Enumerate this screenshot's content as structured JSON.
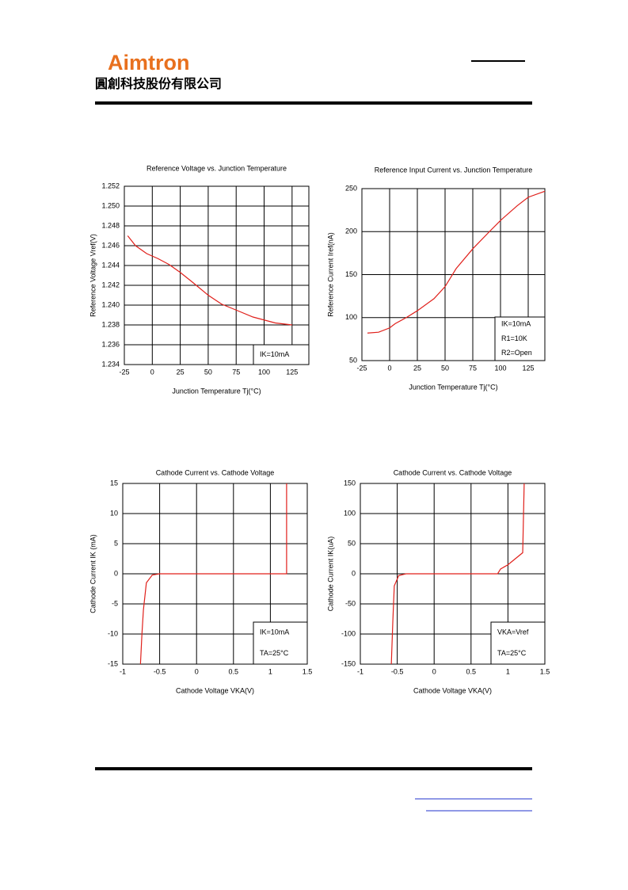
{
  "header": {
    "logo": "Aimtron",
    "company": "圓創科技股份有限公司"
  },
  "chart_data": [
    {
      "type": "line",
      "title": "Reference Voltage vs. Junction Temperature",
      "x_label": "Junction Temperature Tj(°C)",
      "y_label": "Reference Voltage Vref(V)",
      "x": [
        -22,
        -15,
        -5,
        5,
        15,
        25,
        35,
        50,
        62,
        75,
        90,
        110,
        125
      ],
      "values": [
        1.247,
        1.246,
        1.2452,
        1.2447,
        1.2441,
        1.2433,
        1.2424,
        1.241,
        1.2401,
        1.2395,
        1.2388,
        1.2382,
        1.238
      ],
      "color": "#e0201b",
      "xlim": [
        -25,
        140
      ],
      "xticks": [
        -25,
        0,
        25,
        50,
        75,
        100,
        125
      ],
      "ylim": [
        1.234,
        1.252
      ],
      "yticks": [
        {
          "value": 1.234,
          "label": "1.234"
        },
        {
          "value": 1.236,
          "label": "1.236"
        },
        {
          "value": 1.238,
          "label": "1.238"
        },
        {
          "value": 1.24,
          "label": "1.240"
        },
        {
          "value": 1.242,
          "label": "1.242"
        },
        {
          "value": 1.244,
          "label": "1.244"
        },
        {
          "value": 1.246,
          "label": "1.246"
        },
        {
          "value": 1.248,
          "label": "1.248"
        },
        {
          "value": 1.25,
          "label": "1.250"
        },
        {
          "value": 1.252,
          "label": "1.252"
        }
      ],
      "grid": true,
      "annotation": [
        "IK=10mA"
      ]
    },
    {
      "type": "line",
      "title": "Reference Input Current vs. Junction Temperature",
      "x_label": "Junction Temperature Tj(°C)",
      "y_label": "Reference Current Iref(nA)",
      "x": [
        -20,
        -10,
        0,
        5,
        15,
        25,
        40,
        50,
        60,
        75,
        90,
        100,
        115,
        125,
        140
      ],
      "values": [
        82,
        83,
        88,
        93,
        100,
        108,
        122,
        136,
        157,
        180,
        200,
        213,
        230,
        240,
        247
      ],
      "color": "#e0201b",
      "xlim": [
        -25,
        140
      ],
      "xticks": [
        -25,
        0,
        25,
        50,
        75,
        100,
        125
      ],
      "ylim": [
        50,
        250
      ],
      "yticks": [
        50,
        100,
        150,
        200,
        250
      ],
      "grid": true,
      "annotation": [
        "IK=10mA",
        "R1=10K",
        "R2=Open"
      ]
    },
    {
      "type": "line",
      "title": "Cathode Current vs. Cathode Voltage",
      "x_label": "Cathode Voltage VKA(V)",
      "y_label": "Cathode Current IK (mA)",
      "x": [
        -0.76,
        -0.74,
        -0.72,
        -0.68,
        -0.6,
        -0.5,
        1.22,
        1.22
      ],
      "values": [
        -15,
        -10,
        -6,
        -1.5,
        -0.2,
        0,
        0,
        15
      ],
      "color": "#e0201b",
      "xlim": [
        -1,
        1.5
      ],
      "xticks": [
        -1,
        -0.5,
        0,
        0.5,
        1,
        1.5
      ],
      "ylim": [
        -15,
        15
      ],
      "yticks": [
        -15,
        -10,
        -5,
        0,
        5,
        10,
        15
      ],
      "grid": true,
      "annotation": [
        "IK=10mA",
        "TA=25°C"
      ]
    },
    {
      "type": "line",
      "title": "Cathode Current vs. Cathode Voltage",
      "x_label": "Cathode Voltage VKA(V)",
      "y_label": "Cathode Current IK(uA)",
      "x": [
        -0.58,
        -0.56,
        -0.54,
        -0.48,
        -0.38,
        0.86,
        0.9,
        1.0,
        1.1,
        1.2,
        1.22
      ],
      "values": [
        -150,
        -80,
        -20,
        -3,
        0,
        0,
        8,
        15,
        25,
        35,
        150
      ],
      "color": "#e0201b",
      "xlim": [
        -1,
        1.5
      ],
      "xticks": [
        -1,
        -0.5,
        0,
        0.5,
        1,
        1.5
      ],
      "ylim": [
        -150,
        150
      ],
      "yticks": [
        -150,
        -100,
        -50,
        0,
        50,
        100,
        150
      ],
      "grid": true,
      "annotation": [
        "VKA=Vref",
        "TA=25°C"
      ]
    }
  ]
}
